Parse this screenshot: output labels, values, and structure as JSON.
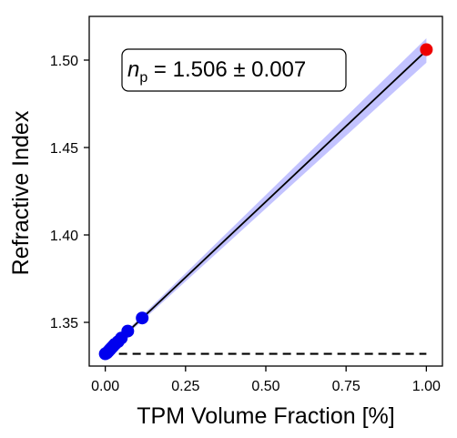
{
  "chart_data": {
    "type": "scatter",
    "xlabel": "TPM Volume Fraction [%]",
    "ylabel": "Refractive Index",
    "xlim": [
      -0.05,
      1.05
    ],
    "ylim": [
      1.325,
      1.525
    ],
    "x_ticks": [
      0.0,
      0.25,
      0.5,
      0.75,
      1.0
    ],
    "x_tick_labels": [
      "0.00",
      "0.25",
      "0.50",
      "0.75",
      "1.00"
    ],
    "y_ticks": [
      1.35,
      1.4,
      1.45,
      1.5
    ],
    "y_tick_labels": [
      "1.35",
      "1.40",
      "1.45",
      "1.50"
    ],
    "grid": false,
    "annotation": {
      "symbol": "n",
      "subscript": "p",
      "rest": " = 1.506 ± 0.007"
    },
    "fit_line": {
      "x": [
        0.0,
        1.0
      ],
      "y": [
        1.3325,
        1.5055
      ],
      "color": "#000000"
    },
    "confidence_band": {
      "x": [
        0.0,
        1.0
      ],
      "lower": [
        1.3317,
        1.4985
      ],
      "upper": [
        1.3333,
        1.5125
      ],
      "color": "#b9b9ff"
    },
    "baseline": {
      "x": [
        0.0,
        1.0
      ],
      "y": 1.332,
      "style": "dashed",
      "color": "#000000"
    },
    "series": [
      {
        "color": "#0000ee",
        "x": [
          0.0,
          0.005,
          0.01,
          0.015,
          0.02,
          0.025,
          0.03,
          0.04,
          0.05,
          0.07,
          0.115
        ],
        "y": [
          1.332,
          1.3325,
          1.3335,
          1.3345,
          1.3355,
          1.3365,
          1.3375,
          1.339,
          1.341,
          1.345,
          1.3525
        ]
      },
      {
        "color": "#ee0000",
        "x": [
          1.0
        ],
        "y": [
          1.506
        ]
      }
    ]
  }
}
